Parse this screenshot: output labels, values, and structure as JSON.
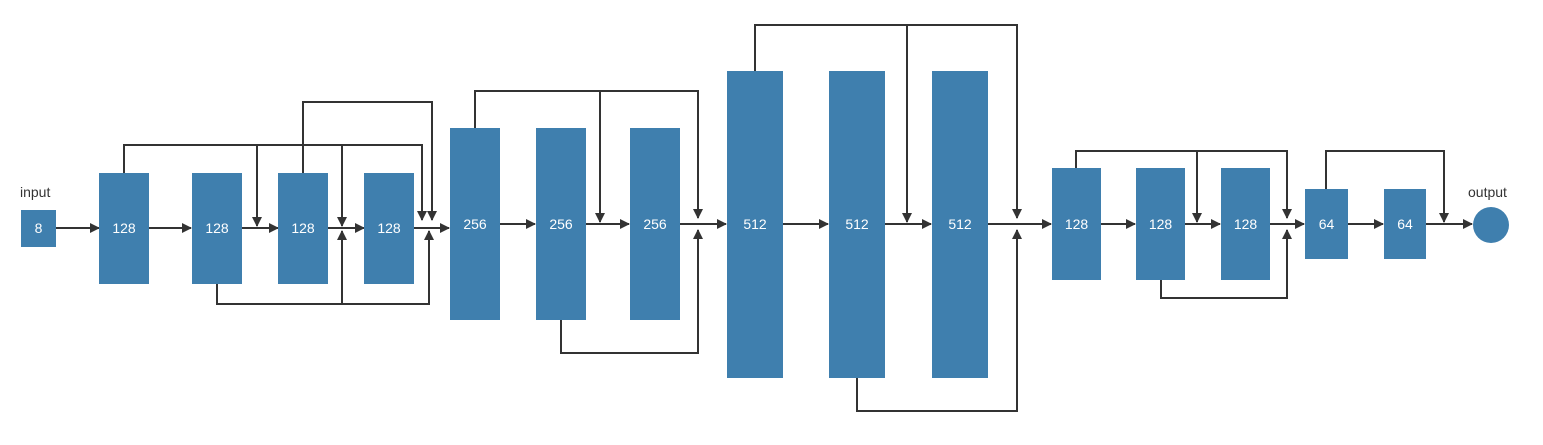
{
  "colors": {
    "node": "#3f7fae",
    "line": "#333333",
    "background": "#ffffff"
  },
  "labels": {
    "input": "input",
    "output": "output"
  },
  "nodes": [
    {
      "id": "n0",
      "label": "8"
    },
    {
      "id": "n1",
      "label": "128"
    },
    {
      "id": "n2",
      "label": "128"
    },
    {
      "id": "n3",
      "label": "128"
    },
    {
      "id": "n4",
      "label": "128"
    },
    {
      "id": "n5",
      "label": "256"
    },
    {
      "id": "n6",
      "label": "256"
    },
    {
      "id": "n7",
      "label": "256"
    },
    {
      "id": "n8",
      "label": "512"
    },
    {
      "id": "n9",
      "label": "512"
    },
    {
      "id": "n10",
      "label": "512"
    },
    {
      "id": "n11",
      "label": "128"
    },
    {
      "id": "n12",
      "label": "128"
    },
    {
      "id": "n13",
      "label": "128"
    },
    {
      "id": "n14",
      "label": "64"
    },
    {
      "id": "n15",
      "label": "64"
    }
  ]
}
